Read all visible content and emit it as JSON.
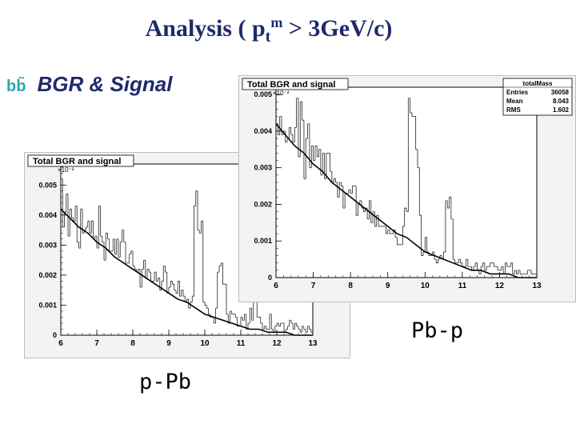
{
  "slide": {
    "title_pre": "Analysis (  p",
    "title_sub": "t",
    "title_sup": "m",
    "title_post": "  > 3GeV/c)",
    "subtitle_bb": "bb̃",
    "subtitle_text": "BGR  & Signal",
    "label_ppb": "p-Pb",
    "label_pbp": "Pb-p"
  },
  "chart_data": [
    {
      "type": "histogram",
      "title": "Total BGR and signal",
      "exponent_label": "×10⁻²",
      "xlim": [
        6,
        13
      ],
      "ylim": [
        0,
        0.0057
      ],
      "xticks": [
        "6",
        "7",
        "8",
        "9",
        "10",
        "11",
        "12",
        "13"
      ],
      "yticks": [
        "0",
        "0.001",
        "0.002",
        "0.003",
        "0.004",
        "0.005"
      ],
      "bin_width": 0.05,
      "histogram_counts": [
        0.0052,
        0.0036,
        0.0041,
        0.0047,
        0.0033,
        0.0042,
        0.0039,
        0.0038,
        0.0043,
        0.0031,
        0.0029,
        0.0042,
        0.0034,
        0.0035,
        0.0036,
        0.0038,
        0.0034,
        0.0038,
        0.0032,
        0.0033,
        0.0029,
        0.0043,
        0.0033,
        0.0031,
        0.0025,
        0.0034,
        0.0032,
        0.0028,
        0.0028,
        0.0032,
        0.0027,
        0.0032,
        0.0026,
        0.0031,
        0.0035,
        0.0031,
        0.0024,
        0.0024,
        0.0027,
        0.0028,
        0.0023,
        0.0022,
        0.0021,
        0.0022,
        0.0016,
        0.0022,
        0.0025,
        0.0019,
        0.0022,
        0.0021,
        0.0018,
        0.0018,
        0.0021,
        0.0018,
        0.0019,
        0.0015,
        0.0018,
        0.0023,
        0.0021,
        0.0014,
        0.0016,
        0.0018,
        0.0017,
        0.0015,
        0.0014,
        0.0018,
        0.0013,
        0.0015,
        0.0013,
        0.0011,
        0.0012,
        0.0009,
        0.0011,
        0.0013,
        0.0043,
        0.0048,
        0.0035,
        0.0034,
        0.0038,
        0.0011,
        0.001,
        0.0009,
        0.0007,
        0.0006,
        0.0006,
        0.0004,
        0.0009,
        0.0021,
        0.0023,
        0.0024,
        0.0017,
        0.0017,
        0.0007,
        0.0004,
        0.0008,
        0.0007,
        0.0007,
        0.0006,
        0.0003,
        0.0003,
        0.0006,
        0.0005,
        0.0007,
        0.0002,
        0.0004,
        0.0009,
        0.0005,
        0.0014,
        0.0016,
        0.0006,
        0.0006,
        0.0004,
        0.0002,
        0.0003,
        0.0002,
        0.0002,
        0.0007,
        0.0002,
        0.0001,
        0.0003,
        0.0004,
        0.0003,
        0.0004,
        0.0004,
        0.0001,
        0.0002,
        0.0003,
        0.0005,
        0.0004,
        0.0002,
        0.0004,
        0.0003,
        0.0002,
        0.0001,
        0.0003,
        0.0002,
        0.0001,
        0.0003,
        0.0002,
        0.0001
      ],
      "curve_x": [
        6.0,
        6.25,
        6.5,
        6.75,
        7.0,
        7.25,
        7.5,
        7.75,
        8.0,
        8.25,
        8.5,
        8.75,
        9.0,
        9.25,
        9.5,
        9.75,
        10.0,
        10.25,
        10.5,
        10.75,
        11.0,
        11.25,
        11.5,
        11.75,
        12.0,
        12.25,
        12.5,
        12.75,
        13.0
      ],
      "curve_y": [
        0.0042,
        0.0039,
        0.0036,
        0.0034,
        0.0031,
        0.0029,
        0.0026,
        0.0024,
        0.0022,
        0.002,
        0.0018,
        0.0016,
        0.0014,
        0.0012,
        0.0011,
        0.0009,
        0.0007,
        0.0006,
        0.0005,
        0.0004,
        0.0003,
        0.0002,
        0.0002,
        0.0001,
        0.0001,
        0.0001,
        0.0,
        0.0,
        0.0
      ]
    },
    {
      "type": "histogram",
      "title": "Total BGR and signal",
      "exponent_label": "×10⁻²",
      "xlim": [
        6,
        13
      ],
      "ylim": [
        0,
        0.0052
      ],
      "xticks": [
        "6",
        "7",
        "8",
        "9",
        "10",
        "11",
        "12",
        "13"
      ],
      "yticks": [
        "0",
        "0.001",
        "0.002",
        "0.003",
        "0.004",
        "0.005"
      ],
      "stats": {
        "name": "totalMass",
        "rows": [
          [
            "Entries",
            "36058"
          ],
          [
            "Mean",
            "8.043"
          ],
          [
            "RMS",
            "1.602"
          ]
        ]
      },
      "bin_width": 0.05,
      "histogram_counts": [
        0.0042,
        0.0039,
        0.0044,
        0.0039,
        0.004,
        0.0037,
        0.0038,
        0.0041,
        0.0039,
        0.0037,
        0.0041,
        0.0049,
        0.0033,
        0.0048,
        0.0043,
        0.0027,
        0.0038,
        0.0042,
        0.003,
        0.0036,
        0.0032,
        0.0036,
        0.0033,
        0.0035,
        0.0028,
        0.0034,
        0.0027,
        0.0034,
        0.0034,
        0.0029,
        0.0026,
        0.0027,
        0.0026,
        0.0022,
        0.0026,
        0.0025,
        0.0019,
        0.0023,
        0.0023,
        0.0024,
        0.0023,
        0.0025,
        0.0025,
        0.0017,
        0.002,
        0.0021,
        0.0019,
        0.0018,
        0.0019,
        0.0016,
        0.0021,
        0.0015,
        0.0018,
        0.0014,
        0.0017,
        0.0014,
        0.0014,
        0.0014,
        0.0014,
        0.0012,
        0.0013,
        0.0012,
        0.0012,
        0.0013,
        0.0011,
        0.0009,
        0.0009,
        0.0009,
        0.0014,
        0.0019,
        0.0018,
        0.0049,
        0.0045,
        0.0044,
        0.0044,
        0.0035,
        0.003,
        0.0017,
        0.0006,
        0.0007,
        0.0011,
        0.0007,
        0.0006,
        0.0006,
        0.0007,
        0.0005,
        0.0004,
        0.0005,
        0.0006,
        0.0005,
        0.0007,
        0.0021,
        0.0019,
        0.0022,
        0.0016,
        0.0005,
        0.0004,
        0.0004,
        0.0005,
        0.0004,
        0.0003,
        0.0003,
        0.0005,
        0.0003,
        0.0003,
        0.0002,
        0.0003,
        0.0004,
        0.0002,
        0.0001,
        0.0003,
        0.0004,
        0.0002,
        0.0003,
        0.0003,
        0.0004,
        0.0004,
        0.0003,
        0.0003,
        0.0002,
        0.0002,
        0.0003,
        0.0001,
        0.0004,
        0.0003,
        0.0003,
        0.0004,
        0.0001,
        0.0002,
        0.0001,
        0.0002,
        0.0001,
        0.0001,
        0.0001,
        0.0001,
        0.0002,
        0.0002,
        0.0001,
        0.0001,
        0.0001
      ],
      "curve_x": [
        6.0,
        6.25,
        6.5,
        6.75,
        7.0,
        7.25,
        7.5,
        7.75,
        8.0,
        8.25,
        8.5,
        8.75,
        9.0,
        9.25,
        9.5,
        9.75,
        10.0,
        10.25,
        10.5,
        10.75,
        11.0,
        11.25,
        11.5,
        11.75,
        12.0,
        12.25,
        12.5,
        12.75,
        13.0
      ],
      "curve_y": [
        0.0042,
        0.0039,
        0.0036,
        0.0034,
        0.0031,
        0.0029,
        0.0026,
        0.0024,
        0.0022,
        0.002,
        0.0018,
        0.0016,
        0.0014,
        0.0012,
        0.0011,
        0.0009,
        0.0007,
        0.0006,
        0.0005,
        0.0004,
        0.0003,
        0.0002,
        0.0002,
        0.0001,
        0.0001,
        0.0001,
        0.0,
        0.0,
        0.0
      ]
    }
  ]
}
